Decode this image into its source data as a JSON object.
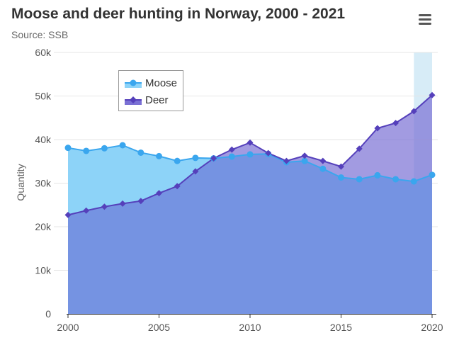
{
  "title": "Moose and deer hunting in Norway, 2000 - 2021",
  "subtitle": "Source: SSB",
  "menu": {
    "icon": "hamburger-menu-icon"
  },
  "colors": {
    "moose_line": "#3aa6ee",
    "moose_fill": "#8dd3f8",
    "deer_line": "#5540bb",
    "deer_fill": "#7a70d4",
    "overlap_fill": "#7593e2",
    "highlight_band": "#d7ecf7",
    "grid": "#e6e6e6"
  },
  "chart_data": {
    "type": "area",
    "title": "Moose and deer hunting in Norway, 2000 - 2021",
    "subtitle": "Source: SSB",
    "ylabel": "Quantity",
    "xlabel": "",
    "x": [
      2000,
      2001,
      2002,
      2003,
      2004,
      2005,
      2006,
      2007,
      2008,
      2009,
      2010,
      2011,
      2012,
      2013,
      2014,
      2015,
      2016,
      2017,
      2018,
      2019,
      2020
    ],
    "xlim": [
      2000,
      2020
    ],
    "ylim": [
      0,
      60000
    ],
    "x_ticks": [
      2000,
      2005,
      2010,
      2015,
      2020
    ],
    "x_tick_labels": [
      "2000",
      "2005",
      "2010",
      "2015",
      "2020"
    ],
    "y_ticks": [
      0,
      10000,
      20000,
      30000,
      40000,
      50000,
      60000
    ],
    "y_tick_labels": [
      "0",
      "10k",
      "20k",
      "30k",
      "40k",
      "50k",
      "60k"
    ],
    "grid": true,
    "highlight_band": [
      2019,
      2020
    ],
    "legend": "top-left",
    "series": [
      {
        "name": "Moose",
        "marker": "circle",
        "values": [
          38100,
          37400,
          38000,
          38700,
          37000,
          36200,
          35100,
          35800,
          35700,
          36100,
          36600,
          36700,
          34800,
          35100,
          33300,
          31300,
          30900,
          31800,
          30900,
          30400,
          31900
        ]
      },
      {
        "name": "Deer",
        "marker": "diamond",
        "values": [
          22700,
          23700,
          24600,
          25300,
          25900,
          27700,
          29300,
          32700,
          35700,
          37700,
          39300,
          36900,
          35100,
          36300,
          35100,
          33800,
          37900,
          42600,
          43800,
          46500,
          50200
        ]
      }
    ]
  }
}
